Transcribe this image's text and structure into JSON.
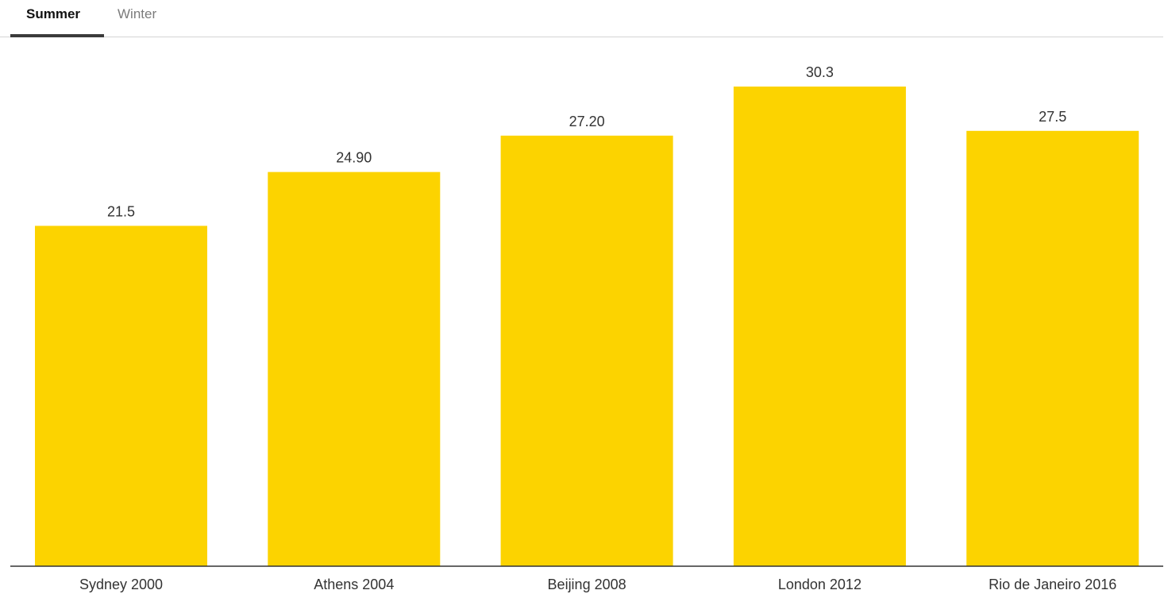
{
  "tabs": [
    {
      "label": "Summer",
      "active": true
    },
    {
      "label": "Winter",
      "active": false
    }
  ],
  "colors": {
    "bar": "#FCD300",
    "axis": "#333333",
    "label_text": "#333333",
    "active_tab_underline": "#3b3b3b",
    "tab_divider": "#d4d4d4"
  },
  "chart_data": {
    "type": "bar",
    "title": "",
    "xlabel": "",
    "ylabel": "",
    "categories": [
      "Sydney 2000",
      "Athens 2004",
      "Beijing 2008",
      "London 2012",
      "Rio de Janeiro 2016"
    ],
    "values": [
      21.5,
      24.9,
      27.2,
      30.3,
      27.5
    ],
    "value_labels": [
      "21.5",
      "24.90",
      "27.20",
      "30.3",
      "27.5"
    ],
    "ylim": [
      0,
      30.3
    ],
    "grid": false,
    "legend": "none"
  }
}
